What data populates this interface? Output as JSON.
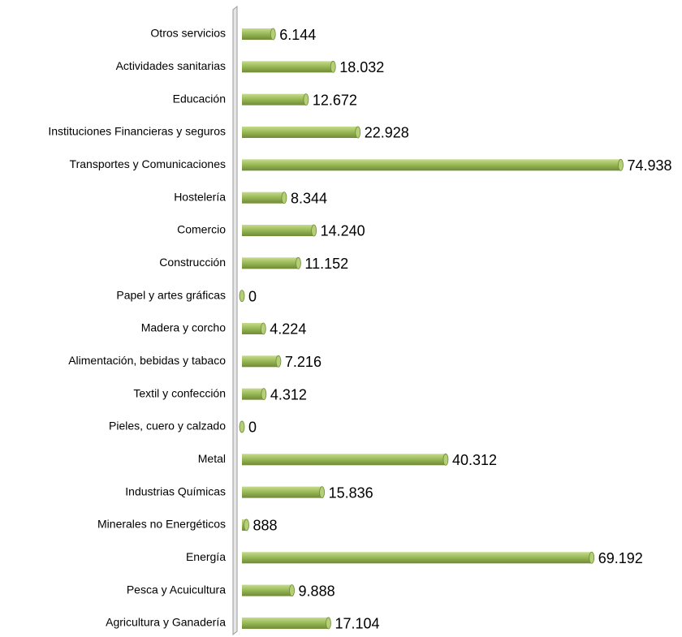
{
  "chart_data": {
    "type": "bar",
    "orientation": "horizontal",
    "categories": [
      "Otros servicios",
      "Actividades sanitarias",
      "Educación",
      "Instituciones Financieras y seguros",
      "Transportes y Comunicaciones",
      "Hostelería",
      "Comercio",
      "Construcción",
      "Papel y artes gráficas",
      "Madera y corcho",
      "Alimentación, bebidas y tabaco",
      "Textil y confección",
      "Pieles, cuero y calzado",
      "Metal",
      "Industrias Químicas",
      "Minerales no Energéticos",
      "Energía",
      "Pesca y Acuicultura",
      "Agricultura y Ganadería"
    ],
    "values": [
      6144,
      18032,
      12672,
      22928,
      74938,
      8344,
      14240,
      11152,
      0,
      4224,
      7216,
      4312,
      0,
      40312,
      15836,
      888,
      69192,
      9888,
      17104
    ],
    "value_labels": [
      "6.144",
      "18.032",
      "12.672",
      "22.928",
      "74.938",
      "8.344",
      "14.240",
      "11.152",
      "0",
      "4.224",
      "7.216",
      "4.312",
      "0",
      "40.312",
      "15.836",
      "888",
      "69.192",
      "9.888",
      "17.104"
    ],
    "color": "#9bbb59",
    "xlim": [
      0,
      80000
    ]
  }
}
